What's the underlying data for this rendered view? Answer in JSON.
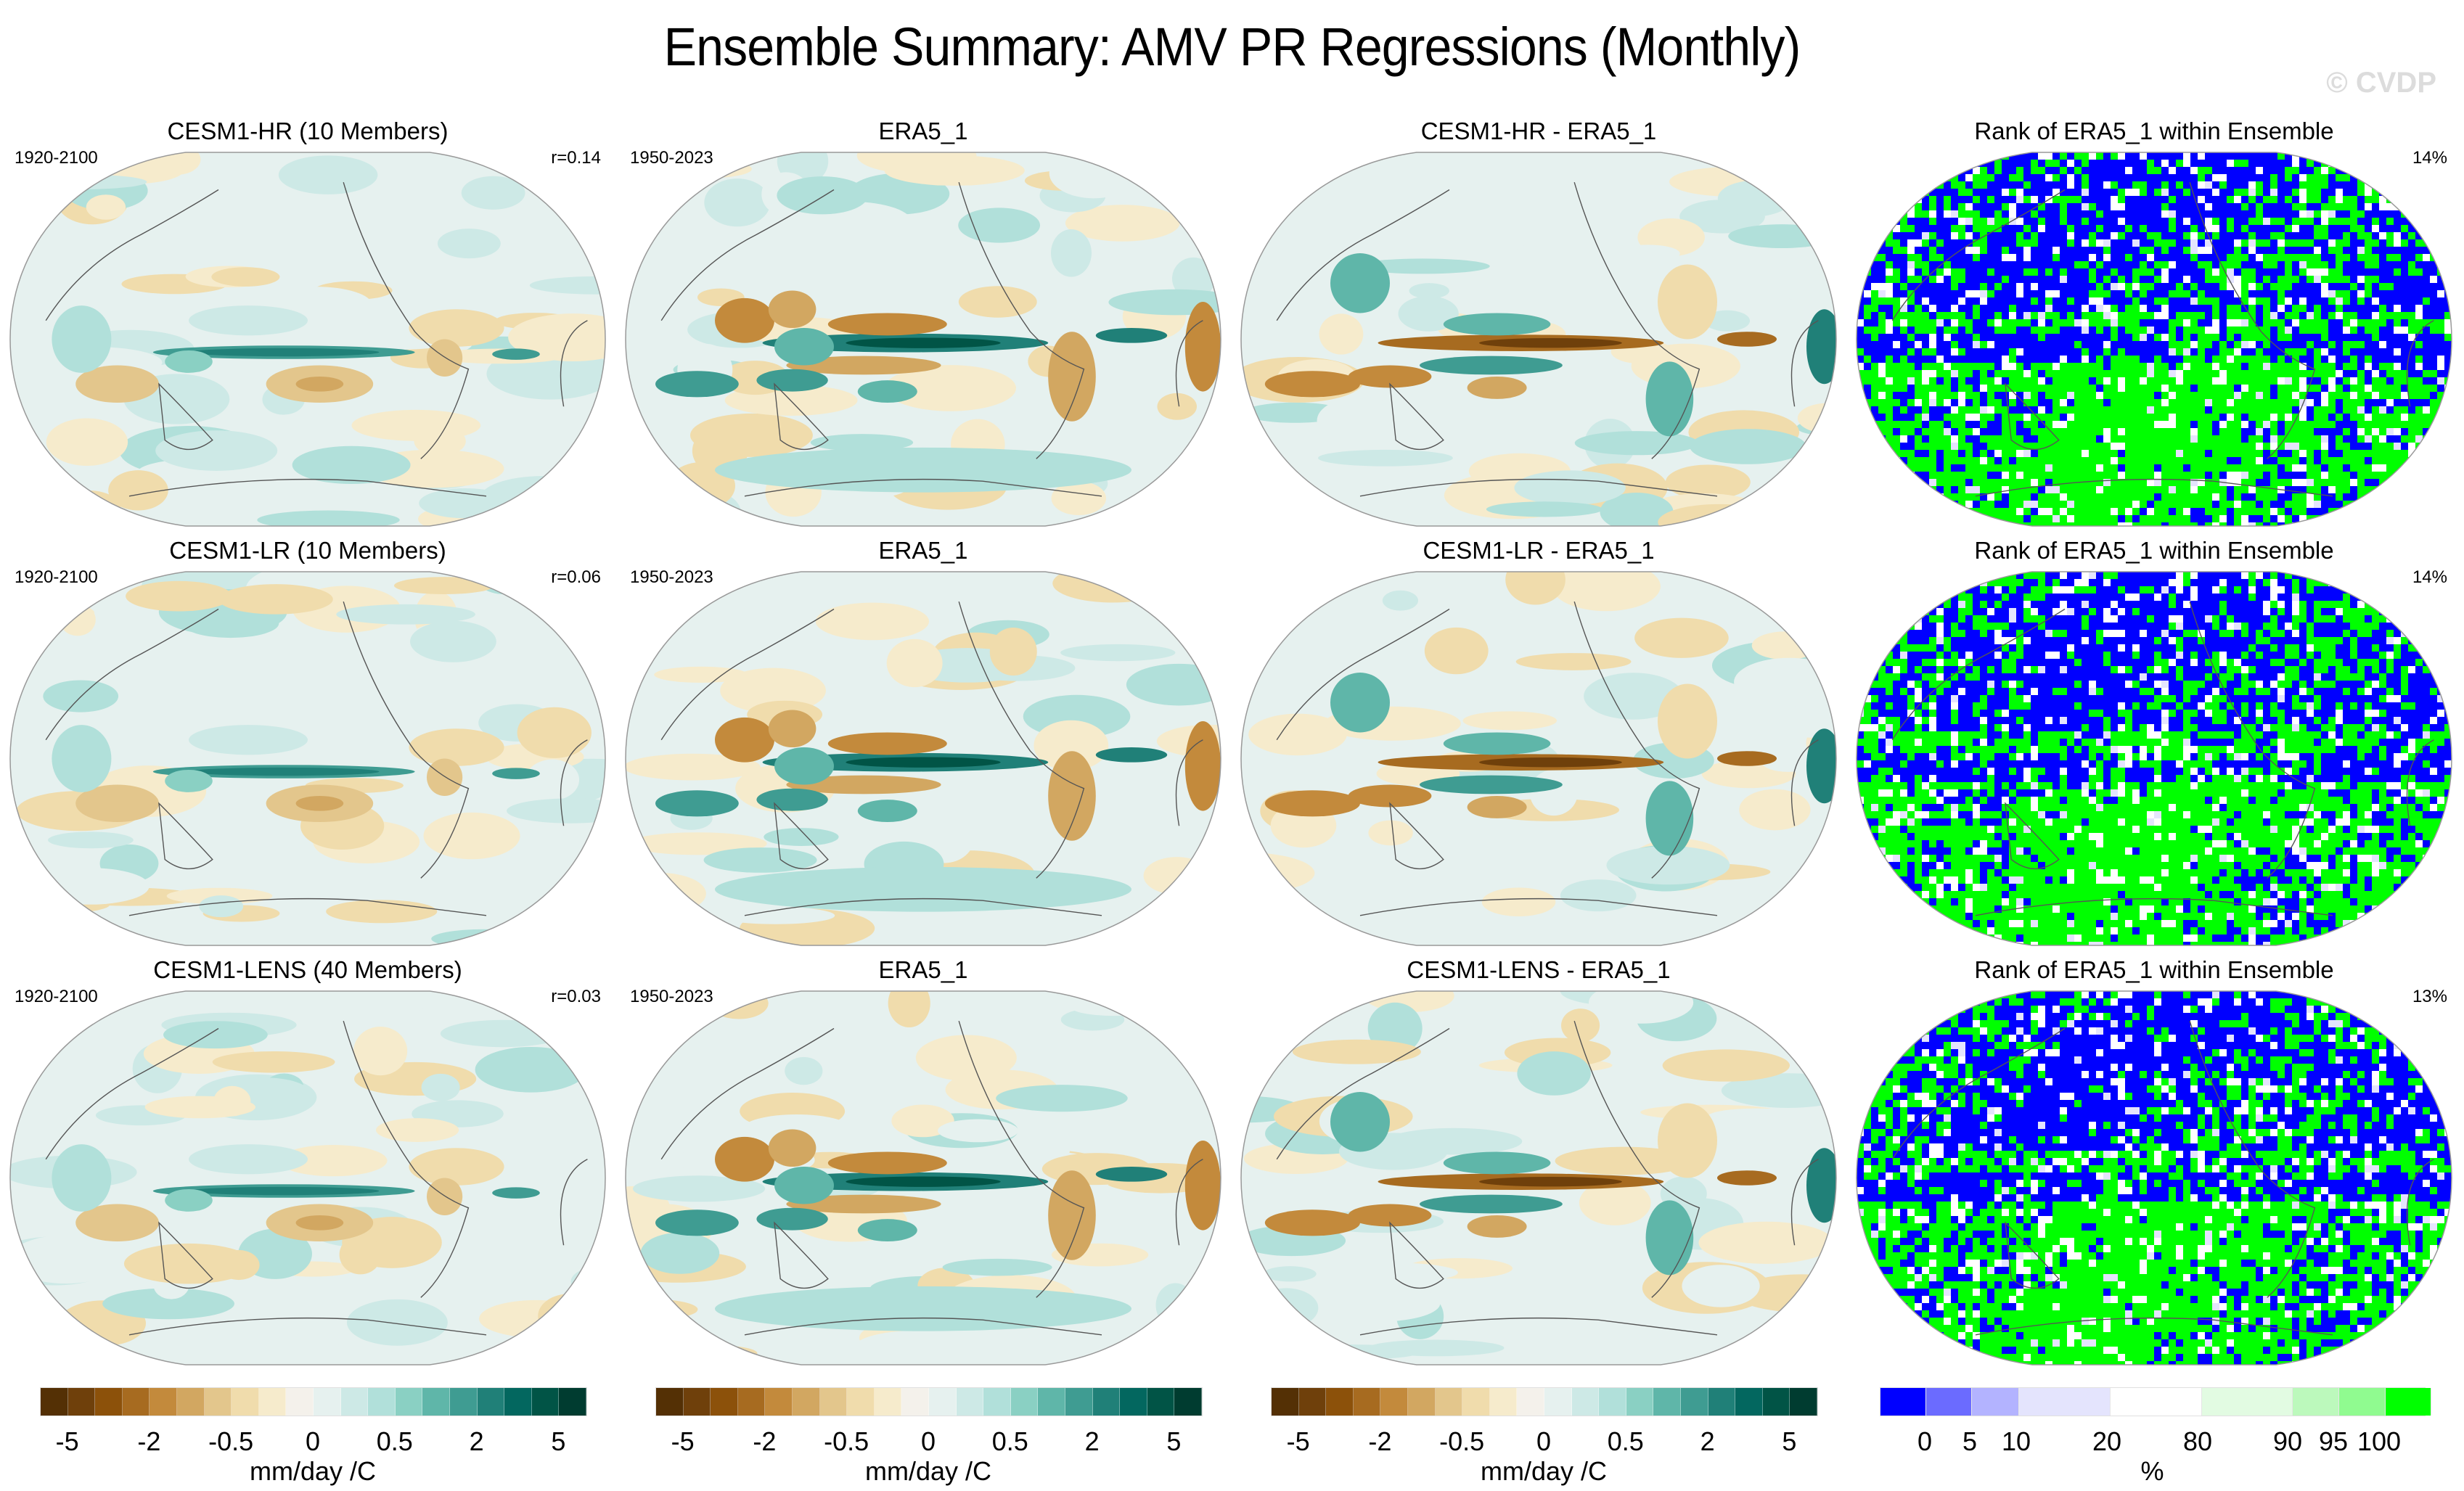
{
  "title": "Ensemble Summary: AMV PR Regressions (Monthly)",
  "watermark": "© CVDP",
  "chart_data": {
    "type": "heatmap",
    "title": "Ensemble Summary: AMV PR Regressions (Monthly)",
    "projection": "Robinson (Pacific-centered)",
    "variable": "PR regression onto AMV",
    "rows": [
      {
        "panels": [
          {
            "title": "CESM1-HR (10 Members)",
            "left_label": "1920-2100",
            "right_label": "r=0.14",
            "kind": "model"
          },
          {
            "title": "ERA5_1",
            "left_label": "1950-2023",
            "right_label": "",
            "kind": "obs"
          },
          {
            "title": "CESM1-HR - ERA5_1",
            "left_label": "",
            "right_label": "",
            "kind": "diff_hr"
          },
          {
            "title": "Rank of ERA5_1 within Ensemble",
            "left_label": "",
            "right_label": "14%",
            "kind": "rank"
          }
        ]
      },
      {
        "panels": [
          {
            "title": "CESM1-LR (10 Members)",
            "left_label": "1920-2100",
            "right_label": "r=0.06",
            "kind": "model"
          },
          {
            "title": "ERA5_1",
            "left_label": "1950-2023",
            "right_label": "",
            "kind": "obs"
          },
          {
            "title": "CESM1-LR - ERA5_1",
            "left_label": "",
            "right_label": "",
            "kind": "diff"
          },
          {
            "title": "Rank of ERA5_1 within Ensemble",
            "left_label": "",
            "right_label": "14%",
            "kind": "rank"
          }
        ]
      },
      {
        "panels": [
          {
            "title": "CESM1-LENS (40 Members)",
            "left_label": "1920-2100",
            "right_label": "r=0.03",
            "kind": "model"
          },
          {
            "title": "ERA5_1",
            "left_label": "1950-2023",
            "right_label": "",
            "kind": "obs"
          },
          {
            "title": "CESM1-LENS - ERA5_1",
            "left_label": "",
            "right_label": "",
            "kind": "diff"
          },
          {
            "title": "Rank of ERA5_1 within Ensemble",
            "left_label": "",
            "right_label": "13%",
            "kind": "rank"
          }
        ]
      }
    ],
    "colorbars": [
      {
        "name": "pr-regression",
        "unit": "mm/day /C",
        "tick_labels": [
          "-5",
          "-2",
          "-0.5",
          "0",
          "0.5",
          "2",
          "5"
        ],
        "tick_positions_in_bins": [
          1,
          4,
          7,
          10,
          13,
          16,
          19
        ],
        "colors": [
          "#543005",
          "#6f400b",
          "#8c510a",
          "#a76b20",
          "#c38a3c",
          "#d2a761",
          "#e3c68c",
          "#f0dcac",
          "#f6ebcc",
          "#f4f1eb",
          "#e6f1ef",
          "#cde9e6",
          "#b1e0da",
          "#8ad0c3",
          "#5fb6a9",
          "#3f9c92",
          "#208078",
          "#03675f",
          "#015446",
          "#003c30"
        ],
        "repeat": 3
      },
      {
        "name": "rank-percent",
        "unit": "%",
        "tick_labels": [
          "0",
          "5",
          "10",
          "20",
          "80",
          "90",
          "95",
          "100"
        ],
        "bin_edges_percent": [
          0,
          5,
          10,
          20,
          80,
          90,
          95,
          100
        ],
        "colors": [
          "#0000ff",
          "#6b6bff",
          "#b3b3ff",
          "#e4e4fd",
          "#ffffff",
          "#e2fbe2",
          "#bcf9bc",
          "#90fb90",
          "#00ff00"
        ]
      }
    ]
  }
}
